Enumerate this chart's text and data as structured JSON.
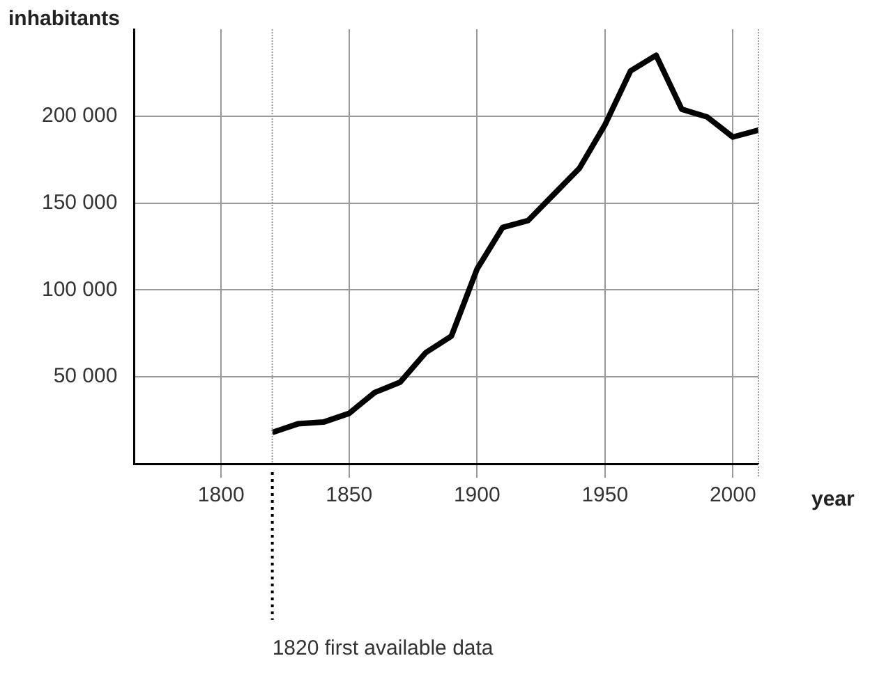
{
  "chart_data": {
    "type": "line",
    "xlabel": "year",
    "ylabel": "inhabitants",
    "x": [
      1820,
      1830,
      1840,
      1850,
      1860,
      1870,
      1880,
      1890,
      1900,
      1910,
      1920,
      1930,
      1940,
      1950,
      1960,
      1970,
      1980,
      1990,
      2000,
      2010
    ],
    "series": [
      {
        "color": "#000000",
        "values": [
          18000,
          23000,
          24000,
          29000,
          41000,
          47000,
          64000,
          73500,
          112000,
          136000,
          140000,
          155000,
          170000,
          195000,
          226000,
          235000,
          204000,
          199500,
          188000,
          192000
        ]
      }
    ],
    "xlim": [
      1766,
      2010
    ],
    "xticks": [
      1800,
      1850,
      1900,
      1950,
      2000
    ],
    "ylim": [
      0,
      250000
    ],
    "yticks": [
      {
        "value": 50000,
        "label": "50 000"
      },
      {
        "value": 100000,
        "label": "100 000"
      },
      {
        "value": 150000,
        "label": "150 000"
      },
      {
        "value": 200000,
        "label": "200 000"
      }
    ],
    "grid": true,
    "legend": false,
    "marker": "none",
    "line_style": "solid",
    "ref_lines": [
      {
        "axis": "x",
        "value": 1820,
        "label": "1820 first available data",
        "line_style": "dotted"
      }
    ]
  }
}
